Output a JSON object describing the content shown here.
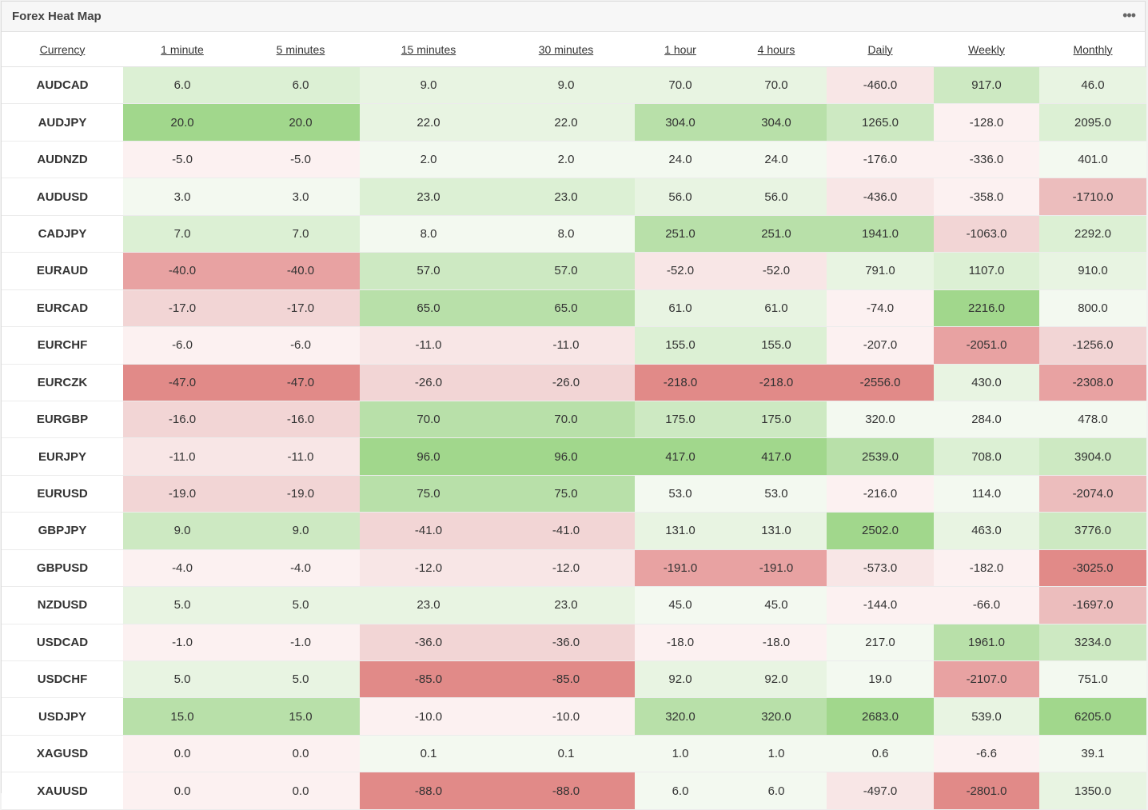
{
  "panel": {
    "title": "Forex Heat Map",
    "menu_icon": "more-dots-icon",
    "menu_glyph": "•••"
  },
  "columns": [
    "Currency",
    "1 minute",
    "5 minutes",
    "15 minutes",
    "30 minutes",
    "1 hour",
    "4 hours",
    "Daily",
    "Weekly",
    "Monthly"
  ],
  "rows": [
    {
      "symbol": "AUDCAD",
      "values": [
        "6.0",
        "6.0",
        "9.0",
        "9.0",
        "70.0",
        "70.0",
        "-460.0",
        "917.0",
        "46.0"
      ],
      "shades": [
        "g2",
        "g2",
        "g1",
        "g1",
        "g1",
        "g1",
        "r1",
        "g3",
        "g1"
      ]
    },
    {
      "symbol": "AUDJPY",
      "values": [
        "20.0",
        "20.0",
        "22.0",
        "22.0",
        "304.0",
        "304.0",
        "1265.0",
        "-128.0",
        "2095.0"
      ],
      "shades": [
        "g5",
        "g5",
        "g1",
        "g1",
        "g4",
        "g4",
        "g3",
        "r0",
        "g2"
      ]
    },
    {
      "symbol": "AUDNZD",
      "values": [
        "-5.0",
        "-5.0",
        "2.0",
        "2.0",
        "24.0",
        "24.0",
        "-176.0",
        "-336.0",
        "401.0"
      ],
      "shades": [
        "r0",
        "r0",
        "g0",
        "g0",
        "g0",
        "g0",
        "r0",
        "r0",
        "g0"
      ]
    },
    {
      "symbol": "AUDUSD",
      "values": [
        "3.0",
        "3.0",
        "23.0",
        "23.0",
        "56.0",
        "56.0",
        "-436.0",
        "-358.0",
        "-1710.0"
      ],
      "shades": [
        "g0",
        "g0",
        "g2",
        "g2",
        "g1",
        "g1",
        "r1",
        "r0",
        "r3"
      ]
    },
    {
      "symbol": "CADJPY",
      "values": [
        "7.0",
        "7.0",
        "8.0",
        "8.0",
        "251.0",
        "251.0",
        "1941.0",
        "-1063.0",
        "2292.0"
      ],
      "shades": [
        "g2",
        "g2",
        "g0",
        "g0",
        "g4",
        "g4",
        "g4",
        "r2",
        "g2"
      ]
    },
    {
      "symbol": "EURAUD",
      "values": [
        "-40.0",
        "-40.0",
        "57.0",
        "57.0",
        "-52.0",
        "-52.0",
        "791.0",
        "1107.0",
        "910.0"
      ],
      "shades": [
        "r4",
        "r4",
        "g3",
        "g3",
        "r1",
        "r1",
        "g1",
        "g2",
        "g1"
      ]
    },
    {
      "symbol": "EURCAD",
      "values": [
        "-17.0",
        "-17.0",
        "65.0",
        "65.0",
        "61.0",
        "61.0",
        "-74.0",
        "2216.0",
        "800.0"
      ],
      "shades": [
        "r2",
        "r2",
        "g4",
        "g4",
        "g1",
        "g1",
        "r0",
        "g5",
        "g0"
      ]
    },
    {
      "symbol": "EURCHF",
      "values": [
        "-6.0",
        "-6.0",
        "-11.0",
        "-11.0",
        "155.0",
        "155.0",
        "-207.0",
        "-2051.0",
        "-1256.0"
      ],
      "shades": [
        "r0",
        "r0",
        "r1",
        "r1",
        "g2",
        "g2",
        "r0",
        "r4",
        "r2"
      ]
    },
    {
      "symbol": "EURCZK",
      "values": [
        "-47.0",
        "-47.0",
        "-26.0",
        "-26.0",
        "-218.0",
        "-218.0",
        "-2556.0",
        "430.0",
        "-2308.0"
      ],
      "shades": [
        "r5",
        "r5",
        "r2",
        "r2",
        "r5",
        "r5",
        "r5",
        "g1",
        "r4"
      ]
    },
    {
      "symbol": "EURGBP",
      "values": [
        "-16.0",
        "-16.0",
        "70.0",
        "70.0",
        "175.0",
        "175.0",
        "320.0",
        "284.0",
        "478.0"
      ],
      "shades": [
        "r2",
        "r2",
        "g4",
        "g4",
        "g3",
        "g3",
        "g0",
        "g0",
        "g0"
      ]
    },
    {
      "symbol": "EURJPY",
      "values": [
        "-11.0",
        "-11.0",
        "96.0",
        "96.0",
        "417.0",
        "417.0",
        "2539.0",
        "708.0",
        "3904.0"
      ],
      "shades": [
        "r1",
        "r1",
        "g5",
        "g5",
        "g5",
        "g5",
        "g4",
        "g2",
        "g3"
      ]
    },
    {
      "symbol": "EURUSD",
      "values": [
        "-19.0",
        "-19.0",
        "75.0",
        "75.0",
        "53.0",
        "53.0",
        "-216.0",
        "114.0",
        "-2074.0"
      ],
      "shades": [
        "r2",
        "r2",
        "g4",
        "g4",
        "g0",
        "g0",
        "r0",
        "g0",
        "r3"
      ]
    },
    {
      "symbol": "GBPJPY",
      "values": [
        "9.0",
        "9.0",
        "-41.0",
        "-41.0",
        "131.0",
        "131.0",
        "2502.0",
        "463.0",
        "3776.0"
      ],
      "shades": [
        "g3",
        "g3",
        "r2",
        "r2",
        "g1",
        "g1",
        "g5",
        "g1",
        "g3"
      ]
    },
    {
      "symbol": "GBPUSD",
      "values": [
        "-4.0",
        "-4.0",
        "-12.0",
        "-12.0",
        "-191.0",
        "-191.0",
        "-573.0",
        "-182.0",
        "-3025.0"
      ],
      "shades": [
        "r0",
        "r0",
        "r1",
        "r1",
        "r4",
        "r4",
        "r1",
        "r0",
        "r5"
      ]
    },
    {
      "symbol": "NZDUSD",
      "values": [
        "5.0",
        "5.0",
        "23.0",
        "23.0",
        "45.0",
        "45.0",
        "-144.0",
        "-66.0",
        "-1697.0"
      ],
      "shades": [
        "g1",
        "g1",
        "g1",
        "g1",
        "g0",
        "g0",
        "r0",
        "r0",
        "r3"
      ]
    },
    {
      "symbol": "USDCAD",
      "values": [
        "-1.0",
        "-1.0",
        "-36.0",
        "-36.0",
        "-18.0",
        "-18.0",
        "217.0",
        "1961.0",
        "3234.0"
      ],
      "shades": [
        "r0",
        "r0",
        "r2",
        "r2",
        "r0",
        "r0",
        "g0",
        "g4",
        "g3"
      ]
    },
    {
      "symbol": "USDCHF",
      "values": [
        "5.0",
        "5.0",
        "-85.0",
        "-85.0",
        "92.0",
        "92.0",
        "19.0",
        "-2107.0",
        "751.0"
      ],
      "shades": [
        "g1",
        "g1",
        "r5",
        "r5",
        "g1",
        "g1",
        "g0",
        "r4",
        "g0"
      ]
    },
    {
      "symbol": "USDJPY",
      "values": [
        "15.0",
        "15.0",
        "-10.0",
        "-10.0",
        "320.0",
        "320.0",
        "2683.0",
        "539.0",
        "6205.0"
      ],
      "shades": [
        "g4",
        "g4",
        "r0",
        "r0",
        "g4",
        "g4",
        "g5",
        "g1",
        "g5"
      ]
    },
    {
      "symbol": "XAGUSD",
      "values": [
        "0.0",
        "0.0",
        "0.1",
        "0.1",
        "1.0",
        "1.0",
        "0.6",
        "-6.6",
        "39.1"
      ],
      "shades": [
        "r0",
        "r0",
        "g0",
        "g0",
        "g0",
        "g0",
        "g0",
        "r0",
        "g0"
      ]
    },
    {
      "symbol": "XAUUSD",
      "values": [
        "0.0",
        "0.0",
        "-88.0",
        "-88.0",
        "6.0",
        "6.0",
        "-497.0",
        "-2801.0",
        "1350.0"
      ],
      "shades": [
        "r0",
        "r0",
        "r5",
        "r5",
        "g0",
        "g0",
        "r1",
        "r5",
        "g1"
      ]
    }
  ],
  "palette": {
    "g0": "#f3f9f0",
    "g1": "#e8f4e2",
    "g2": "#dcf0d4",
    "g3": "#cde9c2",
    "g4": "#b8e0a9",
    "g5": "#a1d78c",
    "r0": "#fcf1f1",
    "r1": "#f8e6e6",
    "r2": "#f2d5d5",
    "r3": "#ecbdbd",
    "r4": "#e8a2a2",
    "r5": "#e18a88"
  }
}
